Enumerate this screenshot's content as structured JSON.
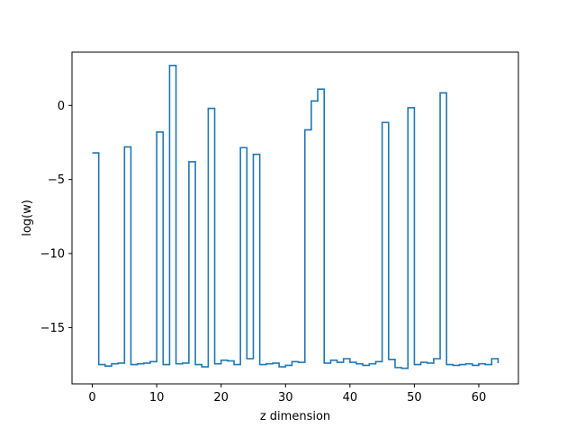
{
  "chart_data": {
    "type": "line",
    "drawstyle": "steps-post",
    "title": "",
    "xlabel": "z dimension",
    "ylabel": "log(w)",
    "xlim": [
      -3.15,
      66.15
    ],
    "ylim": [
      -18.8,
      3.6
    ],
    "xticks": [
      0,
      10,
      20,
      30,
      40,
      50,
      60
    ],
    "yticks": [
      -15,
      -10,
      -5,
      0
    ],
    "ytick_labels": [
      "−15",
      "−10",
      "−5",
      "0"
    ],
    "grid": false,
    "line_color": "#1f77b4",
    "series": [
      {
        "x": [
          0,
          1,
          2,
          3,
          4,
          5,
          6,
          7,
          8,
          9,
          10,
          11,
          12,
          13,
          14,
          15,
          16,
          17,
          18,
          19,
          20,
          21,
          22,
          23,
          24,
          25,
          26,
          27,
          28,
          29,
          30,
          31,
          32,
          33,
          34,
          35,
          36,
          37,
          38,
          39,
          40,
          41,
          42,
          43,
          44,
          45,
          46,
          47,
          48,
          49,
          50,
          51,
          52,
          53,
          54,
          55,
          56,
          57,
          58,
          59,
          60,
          61,
          62,
          63
        ],
        "y": [
          -3.2,
          -17.5,
          -17.6,
          -17.45,
          -17.4,
          -2.8,
          -17.5,
          -17.45,
          -17.4,
          -17.3,
          -1.8,
          -17.5,
          2.7,
          -17.45,
          -17.4,
          -3.8,
          -17.5,
          -17.65,
          -0.2,
          -17.45,
          -17.2,
          -17.25,
          -17.5,
          -2.85,
          -17.1,
          -3.3,
          -17.5,
          -17.45,
          -17.4,
          -17.65,
          -17.55,
          -17.3,
          -17.35,
          -1.65,
          0.3,
          1.1,
          -17.4,
          -17.2,
          -17.35,
          -17.1,
          -17.35,
          -17.45,
          -17.55,
          -17.45,
          -17.3,
          -1.15,
          -17.15,
          -17.7,
          -17.75,
          -0.15,
          -17.5,
          -17.35,
          -17.4,
          -17.1,
          0.85,
          -17.5,
          -17.55,
          -17.5,
          -17.45,
          -17.55,
          -17.45,
          -17.5,
          -17.1,
          -17.4
        ]
      }
    ]
  }
}
